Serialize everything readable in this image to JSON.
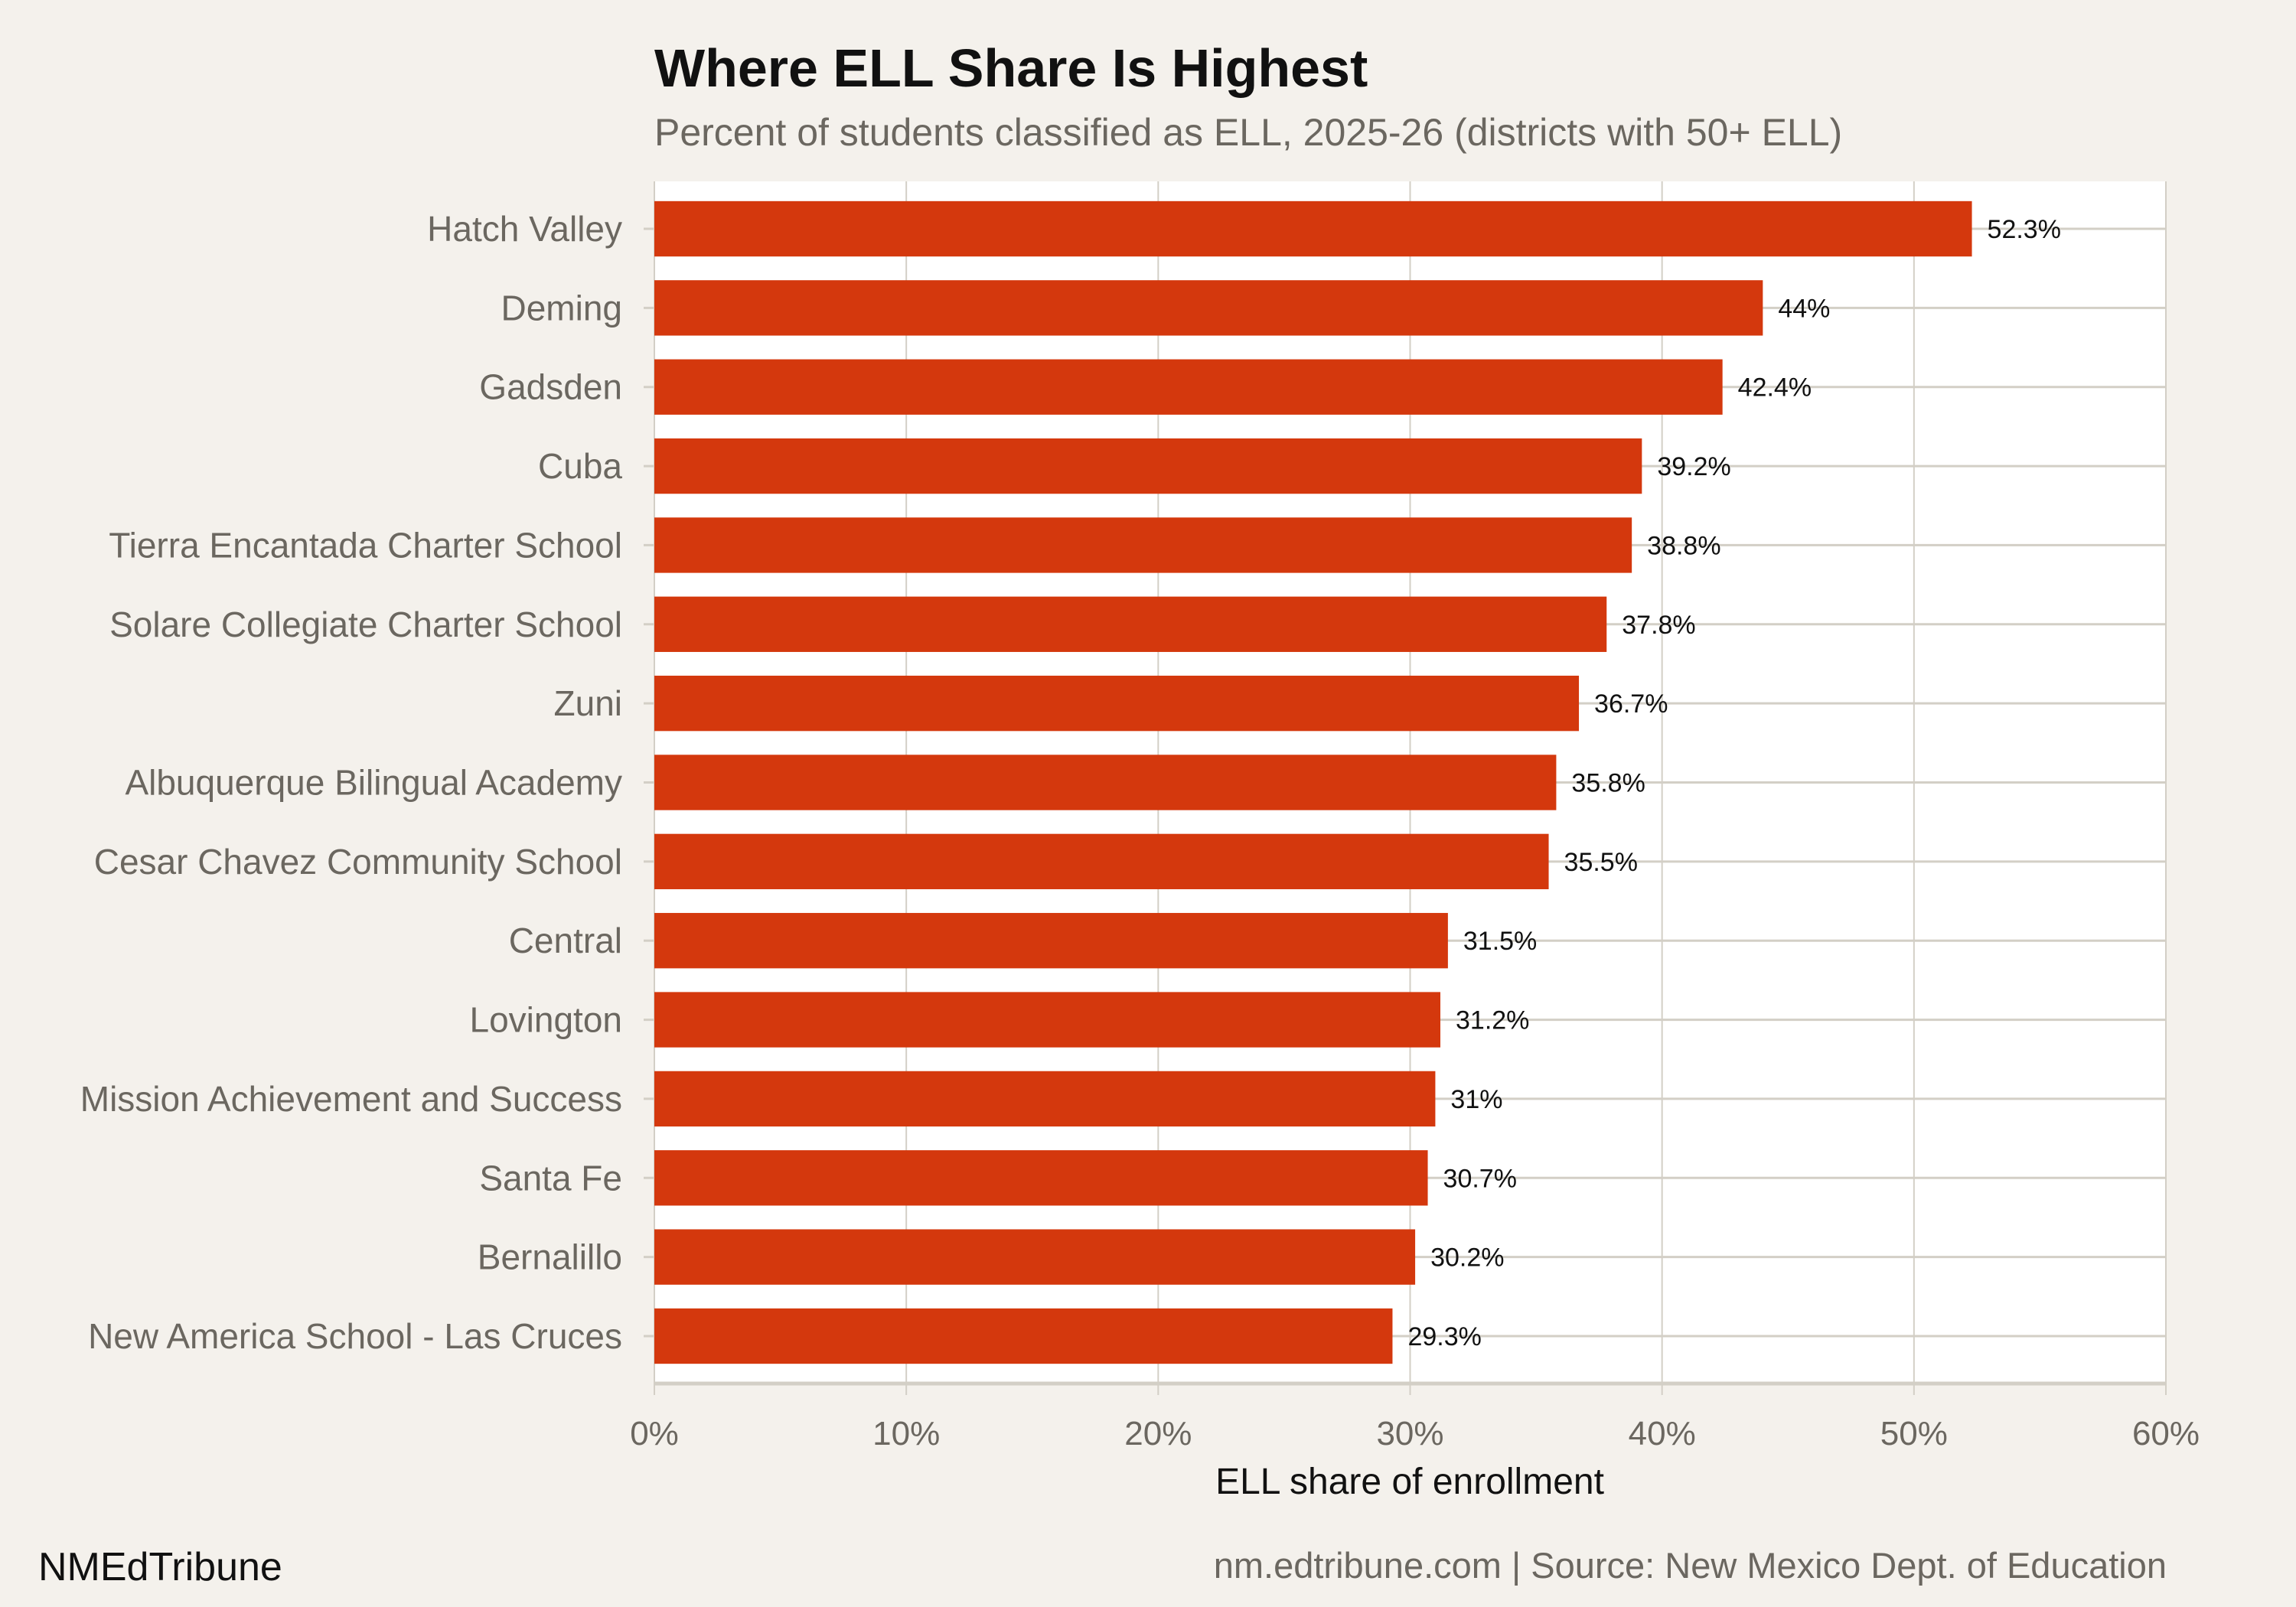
{
  "chart_data": {
    "type": "bar",
    "orientation": "horizontal",
    "title": "Where ELL Share Is Highest",
    "subtitle": "Percent of students classified as ELL, 2025-26 (districts with 50+ ELL)",
    "xlabel": "ELL share of enrollment",
    "ylabel": "",
    "xlim": [
      0,
      60
    ],
    "x_ticks": [
      "0%",
      "10%",
      "20%",
      "30%",
      "40%",
      "50%",
      "60%"
    ],
    "grid": true,
    "categories": [
      "Hatch Valley",
      "Deming",
      "Gadsden",
      "Cuba",
      "Tierra Encantada Charter School",
      "Solare Collegiate Charter School",
      "Zuni",
      "Albuquerque Bilingual Academy",
      "Cesar Chavez Community  School",
      "Central",
      "Lovington",
      "Mission Achievement and Success",
      "Santa Fe",
      "Bernalillo",
      "New America School - Las Cruces"
    ],
    "values": [
      52.3,
      44,
      42.4,
      39.2,
      38.8,
      37.8,
      36.7,
      35.8,
      35.5,
      31.5,
      31.2,
      31,
      30.7,
      30.2,
      29.3
    ],
    "data_labels": [
      "52.3%",
      "44%",
      "42.4%",
      "39.2%",
      "38.8%",
      "37.8%",
      "36.7%",
      "35.8%",
      "35.5%",
      "31.5%",
      "31.2%",
      "31%",
      "30.7%",
      "30.2%",
      "29.3%"
    ],
    "bar_color": "#d4380d"
  },
  "footer": {
    "brand": "NMEdTribune",
    "source": "nm.edtribune.com | Source: New Mexico Dept. of Education"
  },
  "colors": {
    "background": "#f4f1ec",
    "panel": "#ffffff",
    "grid": "#d3cfc6",
    "muted_text": "#6b6760",
    "text": "#111111"
  }
}
